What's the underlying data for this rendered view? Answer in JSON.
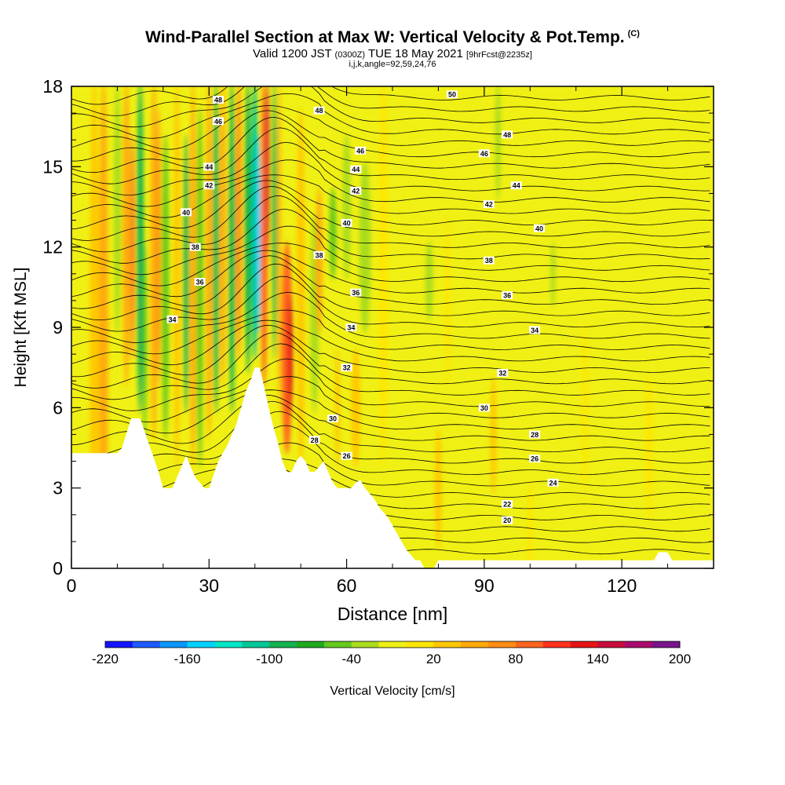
{
  "header": {
    "title": "Wind-Parallel Section at Max W: Vertical Velocity & Pot.Temp.",
    "copyright": "(C)",
    "valid_prefix": "Valid 1200 JST",
    "valid_utc": "(0300Z)",
    "valid_date": "TUE 18 May 2021",
    "forecast": "[9hrFcst@2235z]",
    "indices": "i,j,k,angle=92,59,24,76"
  },
  "chart_data": {
    "type": "heatmap",
    "title": "Wind-Parallel Section at Max W: Vertical Velocity & Pot.Temp.",
    "xlabel": "Distance [nm]",
    "ylabel": "Height [Kft MSL]",
    "xlim": [
      0,
      140
    ],
    "ylim": [
      0,
      18
    ],
    "x_ticks": [
      "0",
      "30",
      "60",
      "90",
      "120"
    ],
    "x_tick_values": [
      0,
      30,
      60,
      90,
      120
    ],
    "y_ticks": [
      "0",
      "3",
      "6",
      "9",
      "12",
      "15",
      "18"
    ],
    "y_tick_values": [
      0,
      3,
      6,
      9,
      12,
      15,
      18
    ],
    "colorbar": {
      "label": "Vertical Velocity [cm/s]",
      "min": -220,
      "max": 200,
      "tick_labels": [
        "-220",
        "-160",
        "-100",
        "-40",
        "20",
        "80",
        "140",
        "200"
      ],
      "colors": [
        "#1414ff",
        "#1e5aff",
        "#0a96ff",
        "#00d2ff",
        "#00e6c8",
        "#00c896",
        "#14b450",
        "#1eaa1e",
        "#64c81e",
        "#aadc1e",
        "#f0f014",
        "#ffe600",
        "#ffc800",
        "#ffaa0a",
        "#ff8c14",
        "#ff641e",
        "#ff321e",
        "#e61414",
        "#c80a3c",
        "#aa0a6e",
        "#78148c"
      ]
    },
    "terrain_kft": [
      [
        0,
        4.3
      ],
      [
        10,
        4.3
      ],
      [
        11,
        4.5
      ],
      [
        13,
        5.6
      ],
      [
        15,
        5.6
      ],
      [
        16,
        5.1
      ],
      [
        17,
        4.6
      ],
      [
        18,
        4.1
      ],
      [
        19,
        3.6
      ],
      [
        20,
        3.0
      ],
      [
        22,
        3.0
      ],
      [
        23,
        3.4
      ],
      [
        24,
        3.8
      ],
      [
        25,
        4.2
      ],
      [
        26,
        3.8
      ],
      [
        27,
        3.4
      ],
      [
        29,
        3.0
      ],
      [
        30,
        3.0
      ],
      [
        31,
        3.5
      ],
      [
        32,
        4.0
      ],
      [
        33,
        4.3
      ],
      [
        34,
        4.6
      ],
      [
        35,
        5.0
      ],
      [
        36,
        5.4
      ],
      [
        37,
        6.0
      ],
      [
        38,
        6.6
      ],
      [
        39,
        7.0
      ],
      [
        40,
        7.5
      ],
      [
        41,
        7.5
      ],
      [
        42,
        6.8
      ],
      [
        43,
        6.0
      ],
      [
        44,
        5.3
      ],
      [
        45,
        4.7
      ],
      [
        46,
        4.0
      ],
      [
        47,
        3.6
      ],
      [
        48,
        3.6
      ],
      [
        49,
        4.0
      ],
      [
        50,
        4.2
      ],
      [
        51,
        4.0
      ],
      [
        52,
        3.6
      ],
      [
        53,
        3.6
      ],
      [
        54,
        3.8
      ],
      [
        55,
        4.0
      ],
      [
        56,
        3.6
      ],
      [
        57,
        3.2
      ],
      [
        58,
        3.0
      ],
      [
        61,
        3.0
      ],
      [
        62,
        3.2
      ],
      [
        63,
        3.3
      ],
      [
        64,
        3.0
      ],
      [
        65,
        2.8
      ],
      [
        66,
        2.6
      ],
      [
        67,
        2.3
      ],
      [
        68,
        2.1
      ],
      [
        69,
        1.9
      ],
      [
        70,
        1.6
      ],
      [
        71,
        1.3
      ],
      [
        72,
        1.0
      ],
      [
        73,
        0.7
      ],
      [
        74,
        0.5
      ],
      [
        75,
        0.3
      ],
      [
        76,
        0.3
      ],
      [
        77,
        0.0
      ],
      [
        79,
        0.0
      ],
      [
        80,
        0.3
      ],
      [
        127,
        0.3
      ],
      [
        128,
        0.6
      ],
      [
        130,
        0.6
      ],
      [
        131,
        0.3
      ],
      [
        140,
        0.3
      ]
    ],
    "theta_contours": [
      {
        "label": "20",
        "label_x": 95,
        "label_y": 1.8
      },
      {
        "label": "22",
        "label_x": 95,
        "label_y": 2.4
      },
      {
        "label": "24",
        "label_x": 105,
        "label_y": 3.2
      },
      {
        "label": "26",
        "label_x": 60,
        "label_y": 4.2
      },
      {
        "label": "26",
        "label_x": 101,
        "label_y": 4.1
      },
      {
        "label": "28",
        "label_x": 53,
        "label_y": 4.8
      },
      {
        "label": "28",
        "label_x": 101,
        "label_y": 5.0
      },
      {
        "label": "30",
        "label_x": 57,
        "label_y": 5.6
      },
      {
        "label": "30",
        "label_x": 90,
        "label_y": 6.0
      },
      {
        "label": "32",
        "label_x": 60,
        "label_y": 7.5
      },
      {
        "label": "32",
        "label_x": 94,
        "label_y": 7.3
      },
      {
        "label": "34",
        "label_x": 22,
        "label_y": 9.3
      },
      {
        "label": "34",
        "label_x": 61,
        "label_y": 9.0
      },
      {
        "label": "34",
        "label_x": 101,
        "label_y": 8.9
      },
      {
        "label": "36",
        "label_x": 28,
        "label_y": 10.7
      },
      {
        "label": "36",
        "label_x": 62,
        "label_y": 10.3
      },
      {
        "label": "36",
        "label_x": 95,
        "label_y": 10.2
      },
      {
        "label": "38",
        "label_x": 27,
        "label_y": 12.0
      },
      {
        "label": "38",
        "label_x": 54,
        "label_y": 11.7
      },
      {
        "label": "38",
        "label_x": 91,
        "label_y": 11.5
      },
      {
        "label": "40",
        "label_x": 25,
        "label_y": 13.3
      },
      {
        "label": "40",
        "label_x": 60,
        "label_y": 12.9
      },
      {
        "label": "40",
        "label_x": 102,
        "label_y": 12.7
      },
      {
        "label": "42",
        "label_x": 30,
        "label_y": 14.3
      },
      {
        "label": "42",
        "label_x": 62,
        "label_y": 14.1
      },
      {
        "label": "42",
        "label_x": 91,
        "label_y": 13.6
      },
      {
        "label": "44",
        "label_x": 30,
        "label_y": 15.0
      },
      {
        "label": "44",
        "label_x": 62,
        "label_y": 14.9
      },
      {
        "label": "44",
        "label_x": 97,
        "label_y": 14.3
      },
      {
        "label": "46",
        "label_x": 32,
        "label_y": 16.7
      },
      {
        "label": "46",
        "label_x": 63,
        "label_y": 15.6
      },
      {
        "label": "46",
        "label_x": 90,
        "label_y": 15.5
      },
      {
        "label": "48",
        "label_x": 32,
        "label_y": 17.5
      },
      {
        "label": "48",
        "label_x": 54,
        "label_y": 17.1
      },
      {
        "label": "48",
        "label_x": 95,
        "label_y": 16.2
      },
      {
        "label": "50",
        "label_x": 83,
        "label_y": 17.7
      }
    ],
    "grid": false
  }
}
